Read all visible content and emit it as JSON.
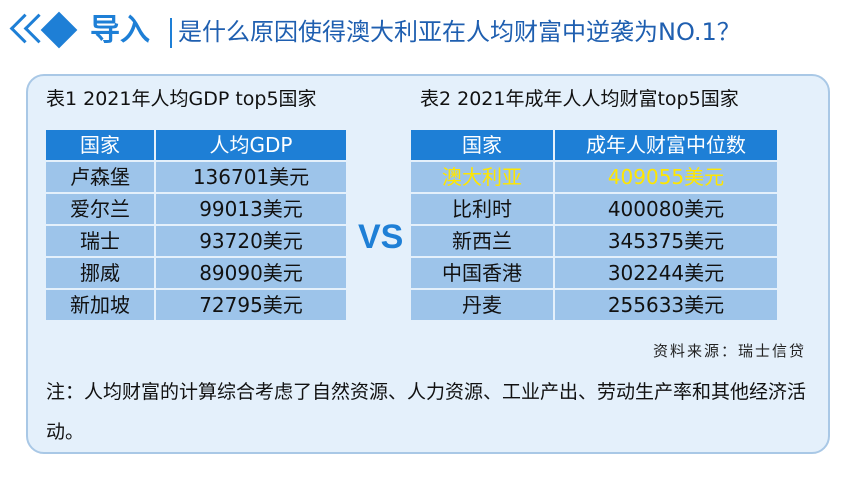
{
  "header": {
    "label": "导入",
    "title": "是什么原因使得澳大利亚在人均财富中逆袭为NO.1？"
  },
  "table1": {
    "caption": "表1 2021年人均GDP top5国家",
    "headers": [
      "国家",
      "人均GDP"
    ],
    "rows": [
      [
        "卢森堡",
        "136701美元"
      ],
      [
        "爱尔兰",
        "99013美元"
      ],
      [
        "瑞士",
        "93720美元"
      ],
      [
        "挪威",
        "89090美元"
      ],
      [
        "新加坡",
        "72795美元"
      ]
    ]
  },
  "vs_label": "VS",
  "table2": {
    "caption": "表2 2021年成年人人均财富top5国家",
    "headers": [
      "国家",
      "成年人财富中位数"
    ],
    "rows": [
      [
        "澳大利亚",
        "409055美元"
      ],
      [
        "比利时",
        "400080美元"
      ],
      [
        "新西兰",
        "345375美元"
      ],
      [
        "中国香港",
        "302244美元"
      ],
      [
        "丹麦",
        "255633美元"
      ]
    ],
    "highlight_color": "#ffe600"
  },
  "source": "资料来源：瑞士信贷",
  "note": "注：人均财富的计算综合考虑了自然资源、人力资源、工业产出、劳动生产率和其他经济活动。",
  "colors": {
    "accent": "#1e7fd6",
    "cell": "#9dc4ea",
    "panel": "#e4f0fb"
  }
}
